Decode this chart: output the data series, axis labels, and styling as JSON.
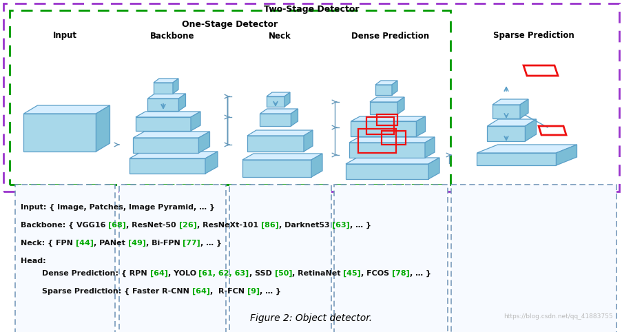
{
  "title": "Figure 2: Object detector.",
  "watermark": "https://blog.csdn.net/qq_41883755",
  "two_stage_label": "Two-Stage Detector",
  "one_stage_label": "One-Stage Detector",
  "box_labels": [
    "Input",
    "Backbone",
    "Neck",
    "Dense Prediction",
    "Sparse Prediction"
  ],
  "bg_color": "#ffffff",
  "layer_face": "#a8d8ea",
  "layer_top": "#d6eeff",
  "layer_right": "#7bbdd6",
  "layer_edge": "#5a9fc8",
  "red_color": "#ee1111",
  "arrow_color": "#6699bb",
  "purple_border": "#9933cc",
  "green_border": "#009900",
  "blue_dashed": "#7799bb",
  "text_lines": [
    [
      {
        "t": "Input: { Image, Patches, Image Pyramid, … }",
        "c": "#111111"
      }
    ],
    [],
    [
      {
        "t": "Backbone: { VGG16 ",
        "c": "#111111"
      },
      {
        "t": "[68]",
        "c": "#00aa00"
      },
      {
        "t": ", ResNet-50 ",
        "c": "#111111"
      },
      {
        "t": "[26]",
        "c": "#00aa00"
      },
      {
        "t": ", ResNeXt-101 ",
        "c": "#111111"
      },
      {
        "t": "[86]",
        "c": "#00aa00"
      },
      {
        "t": ", Darknet53 ",
        "c": "#111111"
      },
      {
        "t": "[63]",
        "c": "#00aa00"
      },
      {
        "t": ", … }",
        "c": "#111111"
      }
    ],
    [],
    [
      {
        "t": "Neck: { FPN ",
        "c": "#111111"
      },
      {
        "t": "[44]",
        "c": "#00aa00"
      },
      {
        "t": ", PANet ",
        "c": "#111111"
      },
      {
        "t": "[49]",
        "c": "#00aa00"
      },
      {
        "t": ", Bi-FPN ",
        "c": "#111111"
      },
      {
        "t": "[77]",
        "c": "#00aa00"
      },
      {
        "t": ", … }",
        "c": "#111111"
      }
    ],
    [],
    [
      {
        "t": "Head:",
        "c": "#111111"
      }
    ],
    [
      {
        "t": "        Dense Prediction: { RPN ",
        "c": "#111111"
      },
      {
        "t": "[64]",
        "c": "#00aa00"
      },
      {
        "t": ", YOLO ",
        "c": "#111111"
      },
      {
        "t": "[61, 62, 63]",
        "c": "#00aa00"
      },
      {
        "t": ", SSD ",
        "c": "#111111"
      },
      {
        "t": "[50]",
        "c": "#00aa00"
      },
      {
        "t": ", RetinaNet ",
        "c": "#111111"
      },
      {
        "t": "[45]",
        "c": "#00aa00"
      },
      {
        "t": ", FCOS ",
        "c": "#111111"
      },
      {
        "t": "[78]",
        "c": "#00aa00"
      },
      {
        "t": ", … }",
        "c": "#111111"
      }
    ],
    [],
    [
      {
        "t": "        Sparse Prediction: { Faster R-CNN ",
        "c": "#111111"
      },
      {
        "t": "[64]",
        "c": "#00aa00"
      },
      {
        "t": ",  R-FCN ",
        "c": "#111111"
      },
      {
        "t": "[9]",
        "c": "#00aa00"
      },
      {
        "t": ", … }",
        "c": "#111111"
      }
    ]
  ]
}
